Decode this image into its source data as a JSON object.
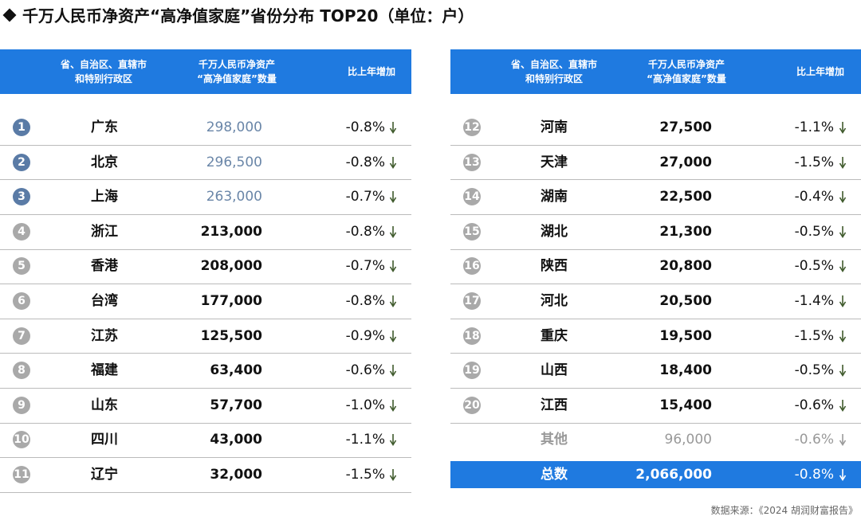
{
  "title": "千万人民币净资产“高净值家庭”省份分布 TOP20（单位：户）",
  "tables": [
    {
      "header": [
        [
          "省、自治区、直辖市",
          "和特别行政区"
        ],
        [
          "千万人民币净资产",
          "“高净值家庭”数量"
        ],
        [
          "比上年增加"
        ]
      ],
      "rows": [
        {
          "rank": "1",
          "region": "广东",
          "count": "298,000",
          "change": "-0.8%"
        },
        {
          "rank": "2",
          "region": "北京",
          "count": "296,500",
          "change": "-0.8%"
        },
        {
          "rank": "3",
          "region": "上海",
          "count": "263,000",
          "change": "-0.7%"
        },
        {
          "rank": "4",
          "region": "浙江",
          "count": "213,000",
          "change": "-0.8%"
        },
        {
          "rank": "5",
          "region": "香港",
          "count": "208,000",
          "change": "-0.7%"
        },
        {
          "rank": "6",
          "region": "台湾",
          "count": "177,000",
          "change": "-0.8%"
        },
        {
          "rank": "7",
          "region": "江苏",
          "count": "125,500",
          "change": "-0.9%"
        },
        {
          "rank": "8",
          "region": "福建",
          "count": "63,400",
          "change": "-0.6%"
        },
        {
          "rank": "9",
          "region": "山东",
          "count": "57,700",
          "change": "-1.0%"
        },
        {
          "rank": "10",
          "region": "四川",
          "count": "43,000",
          "change": "-1.1%"
        },
        {
          "rank": "11",
          "region": "辽宁",
          "count": "32,000",
          "change": "-1.5%"
        }
      ]
    },
    {
      "header": [
        [
          "省、自治区、直辖市",
          "和特别行政区"
        ],
        [
          "千万人民币净资产",
          "“高净值家庭”数量"
        ],
        [
          "比上年增加"
        ]
      ],
      "rows": [
        {
          "rank": "12",
          "region": "河南",
          "count": "27,500",
          "change": "-1.1%"
        },
        {
          "rank": "13",
          "region": "天津",
          "count": "27,000",
          "change": "-1.5%"
        },
        {
          "rank": "14",
          "region": "湖南",
          "count": "22,500",
          "change": "-0.4%"
        },
        {
          "rank": "15",
          "region": "湖北",
          "count": "21,300",
          "change": "-0.5%"
        },
        {
          "rank": "16",
          "region": "陕西",
          "count": "20,800",
          "change": "-0.5%"
        },
        {
          "rank": "17",
          "region": "河北",
          "count": "20,500",
          "change": "-1.4%"
        },
        {
          "rank": "18",
          "region": "重庆",
          "count": "19,500",
          "change": "-1.5%"
        },
        {
          "rank": "19",
          "region": "山西",
          "count": "18,400",
          "change": "-0.5%"
        },
        {
          "rank": "20",
          "region": "江西",
          "count": "15,400",
          "change": "-0.6%"
        }
      ],
      "other": {
        "region": "其他",
        "count": "96,000",
        "change": "-0.6%"
      },
      "total": {
        "region": "总数",
        "count": "2,066,000",
        "change": "-0.8%"
      }
    }
  ],
  "source": "数据来源：《2024 胡润财富报告》"
}
